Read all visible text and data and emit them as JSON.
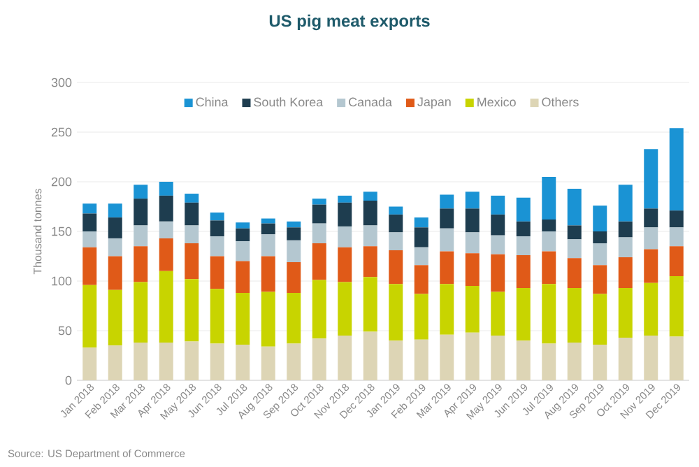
{
  "chart_data": {
    "type": "bar",
    "stacked": true,
    "title": "US pig meat exports",
    "ylabel": "Thousand tonnes",
    "categories": [
      "Jan 2018",
      "Feb 2018",
      "Mar 2018",
      "Apr 2018",
      "May 2018",
      "Jun 2018",
      "Jul 2018",
      "Aug 2018",
      "Sep 2018",
      "Oct 2018",
      "Nov 2018",
      "Dec 2018",
      "Jan 2019",
      "Feb 2019",
      "Mar 2019",
      "Apr 2019",
      "May 2019",
      "Jun 2019",
      "Jul 2019",
      "Aug 2019",
      "Sep 2019",
      "Oct 2019",
      "Nov 2019",
      "Dec 2019"
    ],
    "series": [
      {
        "name": "Others",
        "color": "#ddd5b5",
        "values": [
          33,
          35,
          38,
          38,
          39,
          37,
          36,
          34,
          37,
          42,
          45,
          49,
          40,
          41,
          46,
          48,
          45,
          40,
          37,
          38,
          36,
          43,
          45,
          44
        ]
      },
      {
        "name": "Mexico",
        "color": "#c8d400",
        "values": [
          63,
          56,
          61,
          72,
          63,
          55,
          52,
          55,
          51,
          59,
          54,
          55,
          57,
          46,
          51,
          47,
          44,
          53,
          60,
          55,
          51,
          50,
          53,
          61
        ]
      },
      {
        "name": "Japan",
        "color": "#e05a18",
        "values": [
          38,
          34,
          36,
          33,
          36,
          33,
          32,
          36,
          31,
          37,
          35,
          31,
          34,
          29,
          33,
          33,
          38,
          33,
          33,
          30,
          29,
          31,
          34,
          30
        ]
      },
      {
        "name": "Canada",
        "color": "#b4c7d0",
        "values": [
          16,
          18,
          21,
          17,
          18,
          20,
          20,
          22,
          22,
          20,
          21,
          21,
          18,
          18,
          23,
          21,
          19,
          19,
          20,
          19,
          22,
          20,
          22,
          19
        ]
      },
      {
        "name": "South Korea",
        "color": "#1e3d4f",
        "values": [
          18,
          21,
          27,
          26,
          23,
          16,
          13,
          11,
          13,
          19,
          24,
          25,
          18,
          20,
          20,
          24,
          21,
          15,
          12,
          14,
          12,
          16,
          19,
          17
        ]
      },
      {
        "name": "China",
        "color": "#1a93d4",
        "values": [
          10,
          14,
          14,
          14,
          9,
          8,
          6,
          5,
          6,
          6,
          7,
          9,
          8,
          10,
          14,
          17,
          19,
          24,
          43,
          37,
          26,
          37,
          60,
          83
        ]
      }
    ],
    "ylim": [
      0,
      300
    ],
    "yticks": [
      0,
      50,
      100,
      150,
      200,
      250,
      300
    ],
    "grid": "y",
    "legend": "top",
    "annotations": [
      "Source: US Department of Commerce"
    ]
  }
}
